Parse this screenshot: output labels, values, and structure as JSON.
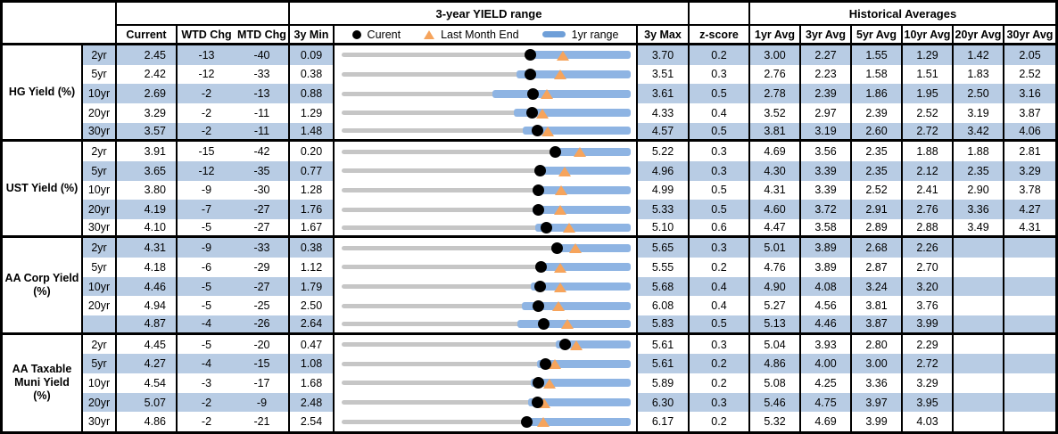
{
  "header": {
    "range_title": "3-year YIELD range",
    "hist_title": "Historical Averages",
    "col_current": "Current",
    "col_wtd": "WTD Chg",
    "col_mtd": "MTD Chg",
    "col_min": "3y Min",
    "col_max": "3y Max",
    "col_z": "z-score",
    "avg_cols": [
      "1yr Avg",
      "3yr Avg",
      "5yr Avg",
      "10yr Avg",
      "20yr Avg",
      "30yr Avg"
    ],
    "legend": {
      "current_label": "Curent",
      "last_month_label": "Last Month End",
      "range_label": "1yr range"
    }
  },
  "colors": {
    "stripe": "#b8cce4",
    "bar_1yr": "#8eb4e3",
    "track_3yr": "#c6c6c6",
    "triangle": "#f6a45c",
    "dot": "#000000",
    "border": "#000000"
  },
  "chart_data": {
    "type": "table+bullet",
    "note": "Each row: 3y min-max gray track, blue 1yr range bar, black dot = current, orange triangle = last month end",
    "sections": [
      {
        "group": "HG Yield (%)",
        "rows": [
          {
            "tenor": "2yr",
            "current": "2.45",
            "wtd": "-13",
            "mtd": "-40",
            "min3y": "0.09",
            "max3y": "3.70",
            "z": "0.2",
            "avgs": [
              "3.00",
              "2.27",
              "1.55",
              "1.29",
              "1.42",
              "2.05"
            ],
            "chart": {
              "min": 0.09,
              "max": 3.7,
              "cur": 2.45,
              "lme": 2.85,
              "lo1y": 2.4,
              "hi1y": 3.7
            }
          },
          {
            "tenor": "5yr",
            "current": "2.42",
            "wtd": "-12",
            "mtd": "-33",
            "min3y": "0.38",
            "max3y": "3.51",
            "z": "0.3",
            "avgs": [
              "2.76",
              "2.23",
              "1.58",
              "1.51",
              "1.83",
              "2.52"
            ],
            "chart": {
              "min": 0.38,
              "max": 3.51,
              "cur": 2.42,
              "lme": 2.75,
              "lo1y": 2.27,
              "hi1y": 3.51
            }
          },
          {
            "tenor": "10yr",
            "current": "2.69",
            "wtd": "-2",
            "mtd": "-13",
            "min3y": "0.88",
            "max3y": "3.61",
            "z": "0.5",
            "avgs": [
              "2.78",
              "2.39",
              "1.86",
              "1.95",
              "2.50",
              "3.16"
            ],
            "chart": {
              "min": 0.88,
              "max": 3.61,
              "cur": 2.69,
              "lme": 2.82,
              "lo1y": 2.3,
              "hi1y": 3.61
            }
          },
          {
            "tenor": "20yr",
            "current": "3.29",
            "wtd": "-2",
            "mtd": "-11",
            "min3y": "1.29",
            "max3y": "4.33",
            "z": "0.4",
            "avgs": [
              "3.52",
              "2.97",
              "2.39",
              "2.52",
              "3.19",
              "3.87"
            ],
            "chart": {
              "min": 1.29,
              "max": 4.33,
              "cur": 3.29,
              "lme": 3.4,
              "lo1y": 3.1,
              "hi1y": 4.33
            }
          },
          {
            "tenor": "30yr",
            "current": "3.57",
            "wtd": "-2",
            "mtd": "-11",
            "min3y": "1.48",
            "max3y": "4.57",
            "z": "0.5",
            "avgs": [
              "3.81",
              "3.19",
              "2.60",
              "2.72",
              "3.42",
              "4.06"
            ],
            "chart": {
              "min": 1.48,
              "max": 4.57,
              "cur": 3.57,
              "lme": 3.68,
              "lo1y": 3.42,
              "hi1y": 4.57
            }
          }
        ]
      },
      {
        "group": "UST Yield (%)",
        "rows": [
          {
            "tenor": "2yr",
            "current": "3.91",
            "wtd": "-15",
            "mtd": "-42",
            "min3y": "0.20",
            "max3y": "5.22",
            "z": "0.3",
            "avgs": [
              "4.69",
              "3.56",
              "2.35",
              "1.88",
              "1.88",
              "2.81"
            ],
            "chart": {
              "min": 0.2,
              "max": 5.22,
              "cur": 3.91,
              "lme": 4.33,
              "lo1y": 3.85,
              "hi1y": 5.22
            }
          },
          {
            "tenor": "5yr",
            "current": "3.65",
            "wtd": "-12",
            "mtd": "-35",
            "min3y": "0.77",
            "max3y": "4.96",
            "z": "0.3",
            "avgs": [
              "4.30",
              "3.39",
              "2.35",
              "2.12",
              "2.35",
              "3.29"
            ],
            "chart": {
              "min": 0.77,
              "max": 4.96,
              "cur": 3.65,
              "lme": 4.0,
              "lo1y": 3.62,
              "hi1y": 4.96
            }
          },
          {
            "tenor": "10yr",
            "current": "3.80",
            "wtd": "-9",
            "mtd": "-30",
            "min3y": "1.28",
            "max3y": "4.99",
            "z": "0.5",
            "avgs": [
              "4.31",
              "3.39",
              "2.52",
              "2.41",
              "2.90",
              "3.78"
            ],
            "chart": {
              "min": 1.28,
              "max": 4.99,
              "cur": 3.8,
              "lme": 4.1,
              "lo1y": 3.78,
              "hi1y": 4.99
            }
          },
          {
            "tenor": "20yr",
            "current": "4.19",
            "wtd": "-7",
            "mtd": "-27",
            "min3y": "1.76",
            "max3y": "5.33",
            "z": "0.5",
            "avgs": [
              "4.60",
              "3.72",
              "2.91",
              "2.76",
              "3.36",
              "4.27"
            ],
            "chart": {
              "min": 1.76,
              "max": 5.33,
              "cur": 4.19,
              "lme": 4.46,
              "lo1y": 4.12,
              "hi1y": 5.33
            }
          },
          {
            "tenor": "30yr",
            "current": "4.10",
            "wtd": "-5",
            "mtd": "-27",
            "min3y": "1.67",
            "max3y": "5.10",
            "z": "0.6",
            "avgs": [
              "4.47",
              "3.58",
              "2.89",
              "2.88",
              "3.49",
              "4.31"
            ],
            "chart": {
              "min": 1.67,
              "max": 5.1,
              "cur": 4.1,
              "lme": 4.37,
              "lo1y": 3.97,
              "hi1y": 5.1
            }
          }
        ]
      },
      {
        "group": "AA Corp Yield (%)",
        "rows": [
          {
            "tenor": "2yr",
            "current": "4.31",
            "wtd": "-9",
            "mtd": "-33",
            "min3y": "0.38",
            "max3y": "5.65",
            "z": "0.3",
            "avgs": [
              "5.01",
              "3.89",
              "2.68",
              "2.26",
              "",
              ""
            ],
            "chart": {
              "min": 0.38,
              "max": 5.65,
              "cur": 4.31,
              "lme": 4.64,
              "lo1y": 4.28,
              "hi1y": 5.65
            }
          },
          {
            "tenor": "5yr",
            "current": "4.18",
            "wtd": "-6",
            "mtd": "-29",
            "min3y": "1.12",
            "max3y": "5.55",
            "z": "0.2",
            "avgs": [
              "4.76",
              "3.89",
              "2.87",
              "2.70",
              "",
              ""
            ],
            "chart": {
              "min": 1.12,
              "max": 5.55,
              "cur": 4.18,
              "lme": 4.47,
              "lo1y": 4.12,
              "hi1y": 5.55
            }
          },
          {
            "tenor": "10yr",
            "current": "4.46",
            "wtd": "-5",
            "mtd": "-27",
            "min3y": "1.79",
            "max3y": "5.68",
            "z": "0.4",
            "avgs": [
              "4.90",
              "4.08",
              "3.24",
              "3.20",
              "",
              ""
            ],
            "chart": {
              "min": 1.79,
              "max": 5.68,
              "cur": 4.46,
              "lme": 4.73,
              "lo1y": 4.33,
              "hi1y": 5.68
            }
          },
          {
            "tenor": "20yr",
            "current": "4.94",
            "wtd": "-5",
            "mtd": "-25",
            "min3y": "2.50",
            "max3y": "6.08",
            "z": "0.4",
            "avgs": [
              "5.27",
              "4.56",
              "3.81",
              "3.76",
              "",
              ""
            ],
            "chart": {
              "min": 2.5,
              "max": 6.08,
              "cur": 4.94,
              "lme": 5.19,
              "lo1y": 4.73,
              "hi1y": 6.08
            }
          },
          {
            "tenor": "",
            "current": "4.87",
            "wtd": "-4",
            "mtd": "-26",
            "min3y": "2.64",
            "max3y": "5.83",
            "z": "0.5",
            "avgs": [
              "5.13",
              "4.46",
              "3.87",
              "3.99",
              "",
              ""
            ],
            "chart": {
              "min": 2.64,
              "max": 5.83,
              "cur": 4.87,
              "lme": 5.13,
              "lo1y": 4.58,
              "hi1y": 5.83
            }
          }
        ]
      },
      {
        "group": "AA Taxable Muni Yield (%)",
        "rows": [
          {
            "tenor": "2yr",
            "current": "4.45",
            "wtd": "-5",
            "mtd": "-20",
            "min3y": "0.47",
            "max3y": "5.61",
            "z": "0.3",
            "avgs": [
              "5.04",
              "3.93",
              "2.80",
              "2.29",
              "",
              ""
            ],
            "chart": {
              "min": 0.47,
              "max": 5.61,
              "cur": 4.45,
              "lme": 4.65,
              "lo1y": 4.28,
              "hi1y": 5.61
            }
          },
          {
            "tenor": "5yr",
            "current": "4.27",
            "wtd": "-4",
            "mtd": "-15",
            "min3y": "1.08",
            "max3y": "5.61",
            "z": "0.2",
            "avgs": [
              "4.86",
              "4.00",
              "3.00",
              "2.72",
              "",
              ""
            ],
            "chart": {
              "min": 1.08,
              "max": 5.61,
              "cur": 4.27,
              "lme": 4.42,
              "lo1y": 4.14,
              "hi1y": 5.61
            }
          },
          {
            "tenor": "10yr",
            "current": "4.54",
            "wtd": "-3",
            "mtd": "-17",
            "min3y": "1.68",
            "max3y": "5.89",
            "z": "0.2",
            "avgs": [
              "5.08",
              "4.25",
              "3.36",
              "3.29",
              "",
              ""
            ],
            "chart": {
              "min": 1.68,
              "max": 5.89,
              "cur": 4.54,
              "lme": 4.71,
              "lo1y": 4.44,
              "hi1y": 5.89
            }
          },
          {
            "tenor": "20yr",
            "current": "5.07",
            "wtd": "-2",
            "mtd": "-9",
            "min3y": "2.48",
            "max3y": "6.30",
            "z": "0.3",
            "avgs": [
              "5.46",
              "4.75",
              "3.97",
              "3.95",
              "",
              ""
            ],
            "chart": {
              "min": 2.48,
              "max": 6.3,
              "cur": 5.07,
              "lme": 5.16,
              "lo1y": 4.94,
              "hi1y": 6.3
            }
          },
          {
            "tenor": "30yr",
            "current": "4.86",
            "wtd": "-2",
            "mtd": "-21",
            "min3y": "2.54",
            "max3y": "6.17",
            "z": "0.2",
            "avgs": [
              "5.32",
              "4.69",
              "3.99",
              "4.03",
              "",
              ""
            ],
            "chart": {
              "min": 2.54,
              "max": 6.17,
              "cur": 4.86,
              "lme": 5.07,
              "lo1y": 4.81,
              "hi1y": 6.17
            }
          }
        ]
      }
    ]
  }
}
